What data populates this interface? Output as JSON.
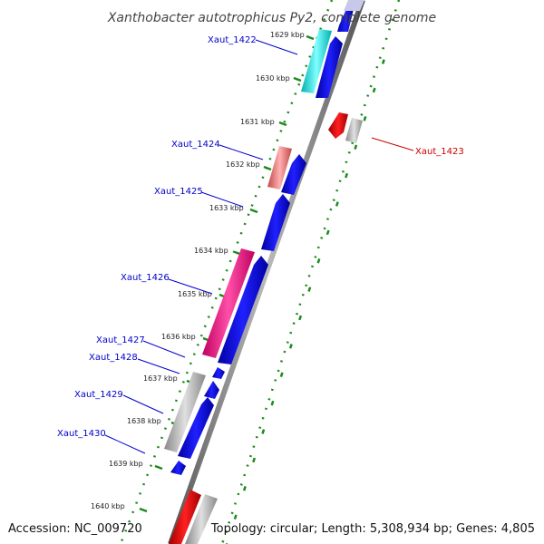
{
  "title": "Xanthobacter autotrophicus Py2, complete genome",
  "accession": "Accession: NC_009720",
  "topology": "Topology: circular; Length: 5,308,934 bp; Genes: 4,805",
  "ticks": [
    "1629 kbp",
    "1630 kbp",
    "1631 kbp",
    "1632 kbp",
    "1633 kbp",
    "1634 kbp",
    "1635 kbp",
    "1636 kbp",
    "1637 kbp",
    "1638 kbp",
    "1639 kbp",
    "1640 kbp"
  ],
  "labels": [
    {
      "text": "Xaut_1422",
      "color": "#0000cc"
    },
    {
      "text": "Xaut_1423",
      "color": "#cc0000"
    },
    {
      "text": "Xaut_1424",
      "color": "#0000cc"
    },
    {
      "text": "Xaut_1425",
      "color": "#0000cc"
    },
    {
      "text": "Xaut_1426",
      "color": "#0000cc"
    },
    {
      "text": "Xaut_1427",
      "color": "#0000cc"
    },
    {
      "text": "Xaut_1428",
      "color": "#0000cc"
    },
    {
      "text": "Xaut_1429",
      "color": "#0000cc"
    },
    {
      "text": "Xaut_1430",
      "color": "#0000cc"
    }
  ],
  "colors": {
    "cds": "#0000ee",
    "cds_reverse": "#ee0000",
    "cyan": "#00e5e5",
    "salmon": "#e87070",
    "magenta": "#ee1480",
    "gray": "#b0b0b0",
    "backbone": "#888888",
    "gc_dots": "#1a8a1a"
  }
}
